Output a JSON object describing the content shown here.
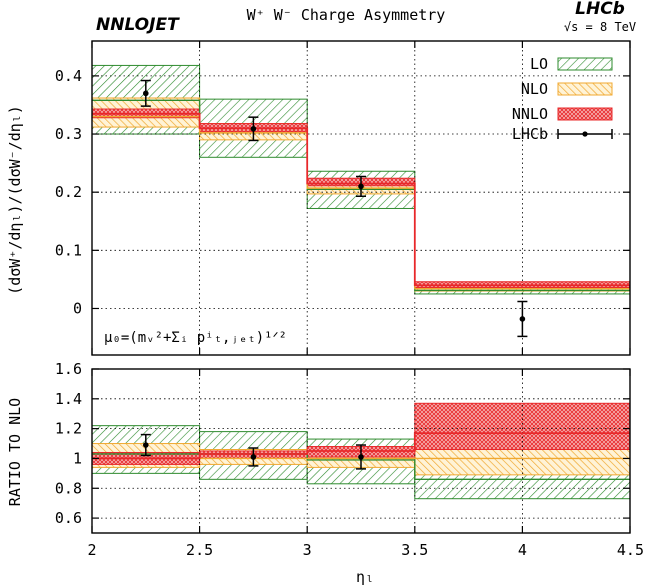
{
  "chart_data": {
    "type": "step-band",
    "title": "W⁺ W⁻ Charge Asymmetry",
    "brand_left": "NNLOJET",
    "brand_right": "LHCb",
    "energy_label": "√s = 8 TeV",
    "scale_label": "μ₀=(mᵥ²+Σᵢ pⁱₜ,ⱼₑₜ)¹ᐟ²",
    "xlabel": "ηₗ",
    "xlim": [
      2,
      4.5
    ],
    "x_ticks": [
      2,
      2.5,
      3,
      3.5,
      4,
      4.5
    ],
    "x_tick_labels": [
      "2",
      "2.5",
      "3",
      "3.5",
      "4",
      "4.5"
    ],
    "bins": [
      [
        2.0,
        2.5
      ],
      [
        2.5,
        3.0
      ],
      [
        3.0,
        3.5
      ],
      [
        3.5,
        4.5
      ]
    ],
    "colors": {
      "LO": "#2e8b2e",
      "NLO": "#f0a830",
      "NNLO": "#e8282a",
      "LHCb": "#000000"
    },
    "legend": [
      "LO",
      "NLO",
      "NNLO",
      "LHCb"
    ],
    "top_panel": {
      "ylabel": "(dσW⁺/dηₗ)/(dσW⁻/dηₗ)",
      "ylim": [
        -0.08,
        0.46
      ],
      "y_ticks": [
        0,
        0.1,
        0.2,
        0.3,
        0.4
      ],
      "y_tick_labels": [
        "0",
        "0.1",
        "0.2",
        "0.3",
        "0.4"
      ],
      "series": [
        {
          "name": "LO",
          "central": [
            0.358,
            0.31,
            0.205,
            0.031
          ],
          "low": [
            0.3,
            0.26,
            0.172,
            0.025
          ],
          "high": [
            0.418,
            0.36,
            0.236,
            0.037
          ]
        },
        {
          "name": "NLO",
          "central": [
            0.33,
            0.302,
            0.207,
            0.034
          ],
          "low": [
            0.312,
            0.29,
            0.197,
            0.03
          ],
          "high": [
            0.362,
            0.318,
            0.22,
            0.041
          ]
        },
        {
          "name": "NNLO",
          "central": [
            0.335,
            0.31,
            0.215,
            0.04
          ],
          "low": [
            0.328,
            0.304,
            0.211,
            0.036
          ],
          "high": [
            0.343,
            0.318,
            0.224,
            0.046
          ]
        }
      ],
      "data": {
        "name": "LHCb",
        "x": [
          2.25,
          2.75,
          3.25,
          4.0
        ],
        "y": [
          0.37,
          0.309,
          0.21,
          -0.018
        ],
        "err": [
          0.022,
          0.02,
          0.017,
          0.03
        ]
      }
    },
    "bottom_panel": {
      "ylabel": "RATIO TO NLO",
      "ylim": [
        0.5,
        1.6
      ],
      "y_ticks": [
        0.6,
        0.8,
        1.0,
        1.2,
        1.4,
        1.6
      ],
      "y_tick_labels": [
        "0.6",
        "0.8",
        "1",
        "1.2",
        "1.4",
        "1.6"
      ],
      "series": [
        {
          "name": "LO",
          "central": [
            1.03,
            1.03,
            0.99,
            0.86
          ],
          "low": [
            0.9,
            0.86,
            0.83,
            0.73
          ],
          "high": [
            1.22,
            1.18,
            1.13,
            1.0
          ]
        },
        {
          "name": "NLO",
          "central": [
            1.0,
            1.0,
            1.0,
            1.0
          ],
          "low": [
            0.94,
            0.96,
            0.94,
            0.89
          ],
          "high": [
            1.1,
            1.06,
            1.07,
            1.11
          ]
        },
        {
          "name": "NNLO",
          "central": [
            1.0,
            1.03,
            1.05,
            1.17
          ],
          "low": [
            0.96,
            1.0,
            1.01,
            1.06
          ],
          "high": [
            1.04,
            1.05,
            1.08,
            1.37
          ]
        }
      ],
      "data": {
        "name": "LHCb",
        "x": [
          2.25,
          2.75,
          3.25,
          4.0
        ],
        "y": [
          1.09,
          1.01,
          1.01,
          null
        ],
        "err": [
          0.07,
          0.06,
          0.08,
          null
        ]
      }
    }
  }
}
